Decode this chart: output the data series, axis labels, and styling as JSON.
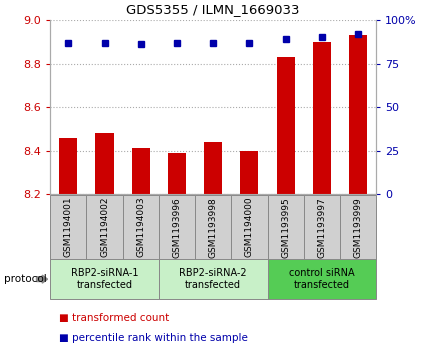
{
  "title": "GDS5355 / ILMN_1669033",
  "samples": [
    "GSM1194001",
    "GSM1194002",
    "GSM1194003",
    "GSM1193996",
    "GSM1193998",
    "GSM1194000",
    "GSM1193995",
    "GSM1193997",
    "GSM1193999"
  ],
  "red_values": [
    8.46,
    8.48,
    8.41,
    8.39,
    8.44,
    8.4,
    8.83,
    8.9,
    8.93
  ],
  "blue_values": [
    87,
    87,
    86,
    87,
    87,
    87,
    89,
    90,
    92
  ],
  "ylim_left": [
    8.2,
    9.0
  ],
  "ylim_right": [
    0,
    100
  ],
  "yticks_left": [
    8.2,
    8.4,
    8.6,
    8.8,
    9.0
  ],
  "yticks_right": [
    0,
    25,
    50,
    75,
    100
  ],
  "yticklabels_right": [
    "0",
    "25",
    "50",
    "75",
    "100%"
  ],
  "red_color": "#CC0000",
  "blue_color": "#0000AA",
  "bar_width": 0.5,
  "groups": [
    {
      "label": "RBP2-siRNA-1\ntransfected",
      "indices": [
        0,
        1,
        2
      ],
      "color": "#c8f0c8"
    },
    {
      "label": "RBP2-siRNA-2\ntransfected",
      "indices": [
        3,
        4,
        5
      ],
      "color": "#c8f0c8"
    },
    {
      "label": "control siRNA\ntransfected",
      "indices": [
        6,
        7,
        8
      ],
      "color": "#55cc55"
    }
  ],
  "legend_red": "transformed count",
  "legend_blue": "percentile rank within the sample",
  "protocol_label": "protocol",
  "background_color": "#ffffff",
  "plot_bg_color": "#ffffff",
  "tick_label_color_left": "#CC0000",
  "tick_label_color_right": "#0000AA",
  "sample_box_color": "#d0d0d0",
  "sample_box_edge": "#888888"
}
